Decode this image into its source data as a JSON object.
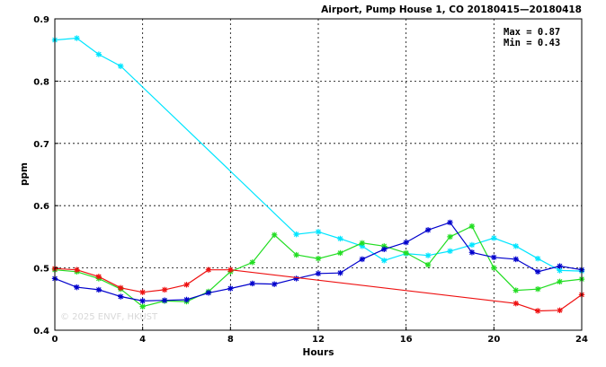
{
  "chart_data": {
    "type": "line",
    "title": "Airport, Pump House 1, CO 20180415—20180418",
    "xlabel": "Hours",
    "ylabel": "ppm",
    "xlim": [
      0,
      24
    ],
    "ylim": [
      0.4,
      0.9
    ],
    "xticks": [
      "0",
      "4",
      "8",
      "12",
      "16",
      "20",
      "24"
    ],
    "xtick_values": [
      0,
      4,
      8,
      12,
      16,
      20,
      24
    ],
    "yticks": [
      "0.4",
      "0.5",
      "0.6",
      "0.7",
      "0.8",
      "0.9"
    ],
    "ytick_values": [
      0.4,
      0.5,
      0.6,
      0.7,
      0.8,
      0.9
    ],
    "grid": true,
    "annotations": {
      "max": "Max = 0.87",
      "min": "Min = 0.43"
    },
    "watermark": "© 2025  ENVF, HKUST",
    "series": [
      {
        "color": "#00e5ff",
        "x": [
          0,
          1,
          2,
          3,
          11,
          12,
          13,
          14,
          15,
          16,
          17,
          18,
          19,
          20,
          21,
          22,
          23,
          24
        ],
        "y": [
          0.866,
          0.869,
          0.843,
          0.824,
          0.554,
          0.558,
          0.547,
          0.535,
          0.512,
          0.523,
          0.52,
          0.527,
          0.537,
          0.548,
          0.535,
          0.515,
          0.496,
          0.495
        ]
      },
      {
        "color": "#22dd22",
        "x": [
          0,
          1,
          2,
          3,
          4,
          5,
          6,
          7,
          8,
          9,
          10,
          11,
          12,
          13,
          14,
          15,
          16,
          17,
          18,
          19,
          20,
          21,
          22,
          23,
          24
        ],
        "y": [
          0.497,
          0.494,
          0.483,
          0.466,
          0.438,
          0.447,
          0.446,
          0.462,
          0.494,
          0.509,
          0.553,
          0.521,
          0.515,
          0.524,
          0.54,
          0.535,
          0.524,
          0.505,
          0.55,
          0.567,
          0.5,
          0.464,
          0.466,
          0.478,
          0.482
        ]
      },
      {
        "color": "#0000cc",
        "x": [
          0,
          1,
          2,
          3,
          4,
          5,
          6,
          7,
          8,
          9,
          10,
          11,
          12,
          13,
          14,
          15,
          16,
          17,
          18,
          19,
          20,
          21,
          22,
          23,
          24
        ],
        "y": [
          0.483,
          0.469,
          0.465,
          0.454,
          0.447,
          0.448,
          0.449,
          0.46,
          0.467,
          0.475,
          0.474,
          0.483,
          0.491,
          0.492,
          0.514,
          0.53,
          0.541,
          0.561,
          0.573,
          0.525,
          0.517,
          0.514,
          0.494,
          0.503,
          0.497
        ]
      },
      {
        "color": "#ee1111",
        "x": [
          0,
          1,
          2,
          3,
          4,
          5,
          6,
          7,
          8,
          21,
          22,
          23,
          24
        ],
        "y": [
          0.499,
          0.497,
          0.486,
          0.468,
          0.461,
          0.465,
          0.473,
          0.497,
          0.497,
          0.443,
          0.431,
          0.432,
          0.457
        ]
      }
    ]
  }
}
